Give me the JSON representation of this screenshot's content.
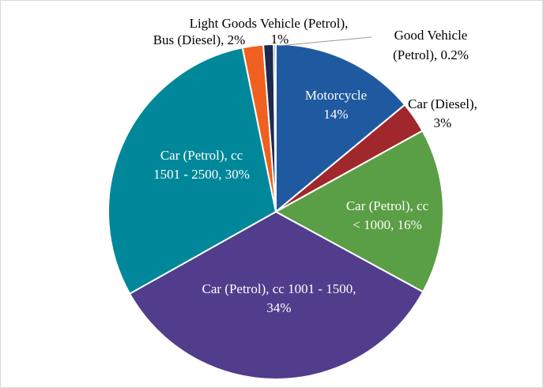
{
  "chart_data": {
    "type": "pie",
    "values": [
      14,
      3,
      16,
      34,
      30,
      2,
      1,
      0.2
    ],
    "value_labels": [
      [
        "Motorcycle",
        "14%"
      ],
      [
        "Car (Diesel),",
        "3%"
      ],
      [
        "Car (Petrol), cc",
        "< 1000, 16%"
      ],
      [
        "Car (Petrol), cc 1001 - 1500,",
        "34%"
      ],
      [
        "Car (Petrol), cc",
        "1501 - 2500, 30%"
      ],
      [
        "Bus (Diesel), 2%"
      ],
      [
        "Light Goods Vehicle (Petrol),",
        "1%"
      ],
      [
        "Good Vehicle",
        "(Petrol), 0.2%"
      ]
    ],
    "colors": [
      "#1f5aa0",
      "#a0282d",
      "#5a9e45",
      "#523c8c",
      "#00889a",
      "#f06020",
      "#1c2a50",
      "#5a7ab0"
    ]
  }
}
